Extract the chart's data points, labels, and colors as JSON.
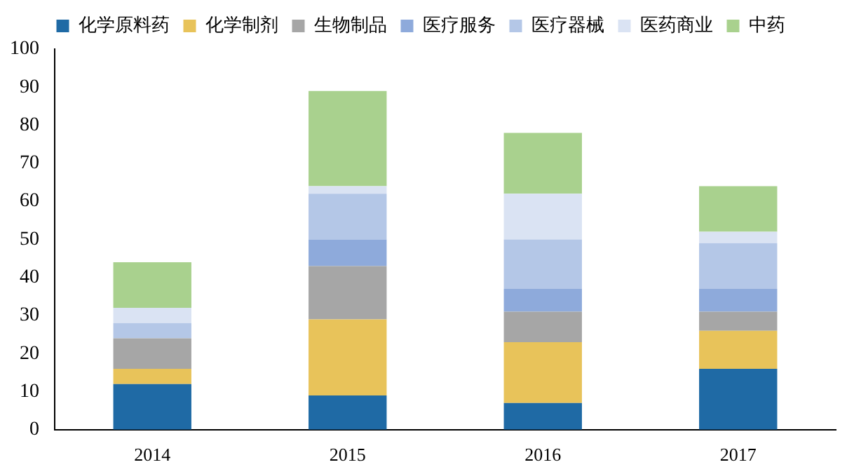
{
  "chart_data": {
    "type": "bar",
    "stacked": true,
    "categories": [
      "2014",
      "2015",
      "2016",
      "2017"
    ],
    "series": [
      {
        "name": "化学原料药",
        "color": "#1f6aa5",
        "values": [
          12,
          9,
          7,
          16
        ]
      },
      {
        "name": "化学制剂",
        "color": "#e8c35a",
        "values": [
          4,
          20,
          16,
          10
        ]
      },
      {
        "name": "生物制品",
        "color": "#a6a6a6",
        "values": [
          8,
          14,
          8,
          5
        ]
      },
      {
        "name": "医疗服务",
        "color": "#8eaadb",
        "values": [
          0,
          7,
          6,
          6
        ]
      },
      {
        "name": "医疗器械",
        "color": "#b4c7e7",
        "values": [
          4,
          12,
          13,
          12
        ]
      },
      {
        "name": "医药商业",
        "color": "#dae3f3",
        "values": [
          4,
          2,
          12,
          3
        ]
      },
      {
        "name": "中药",
        "color": "#a9d18e",
        "values": [
          12,
          25,
          16,
          12
        ]
      }
    ],
    "ylim": [
      0,
      100
    ],
    "yticks": [
      0,
      10,
      20,
      30,
      40,
      50,
      60,
      70,
      80,
      90,
      100
    ],
    "grid": false,
    "legend": "top"
  }
}
